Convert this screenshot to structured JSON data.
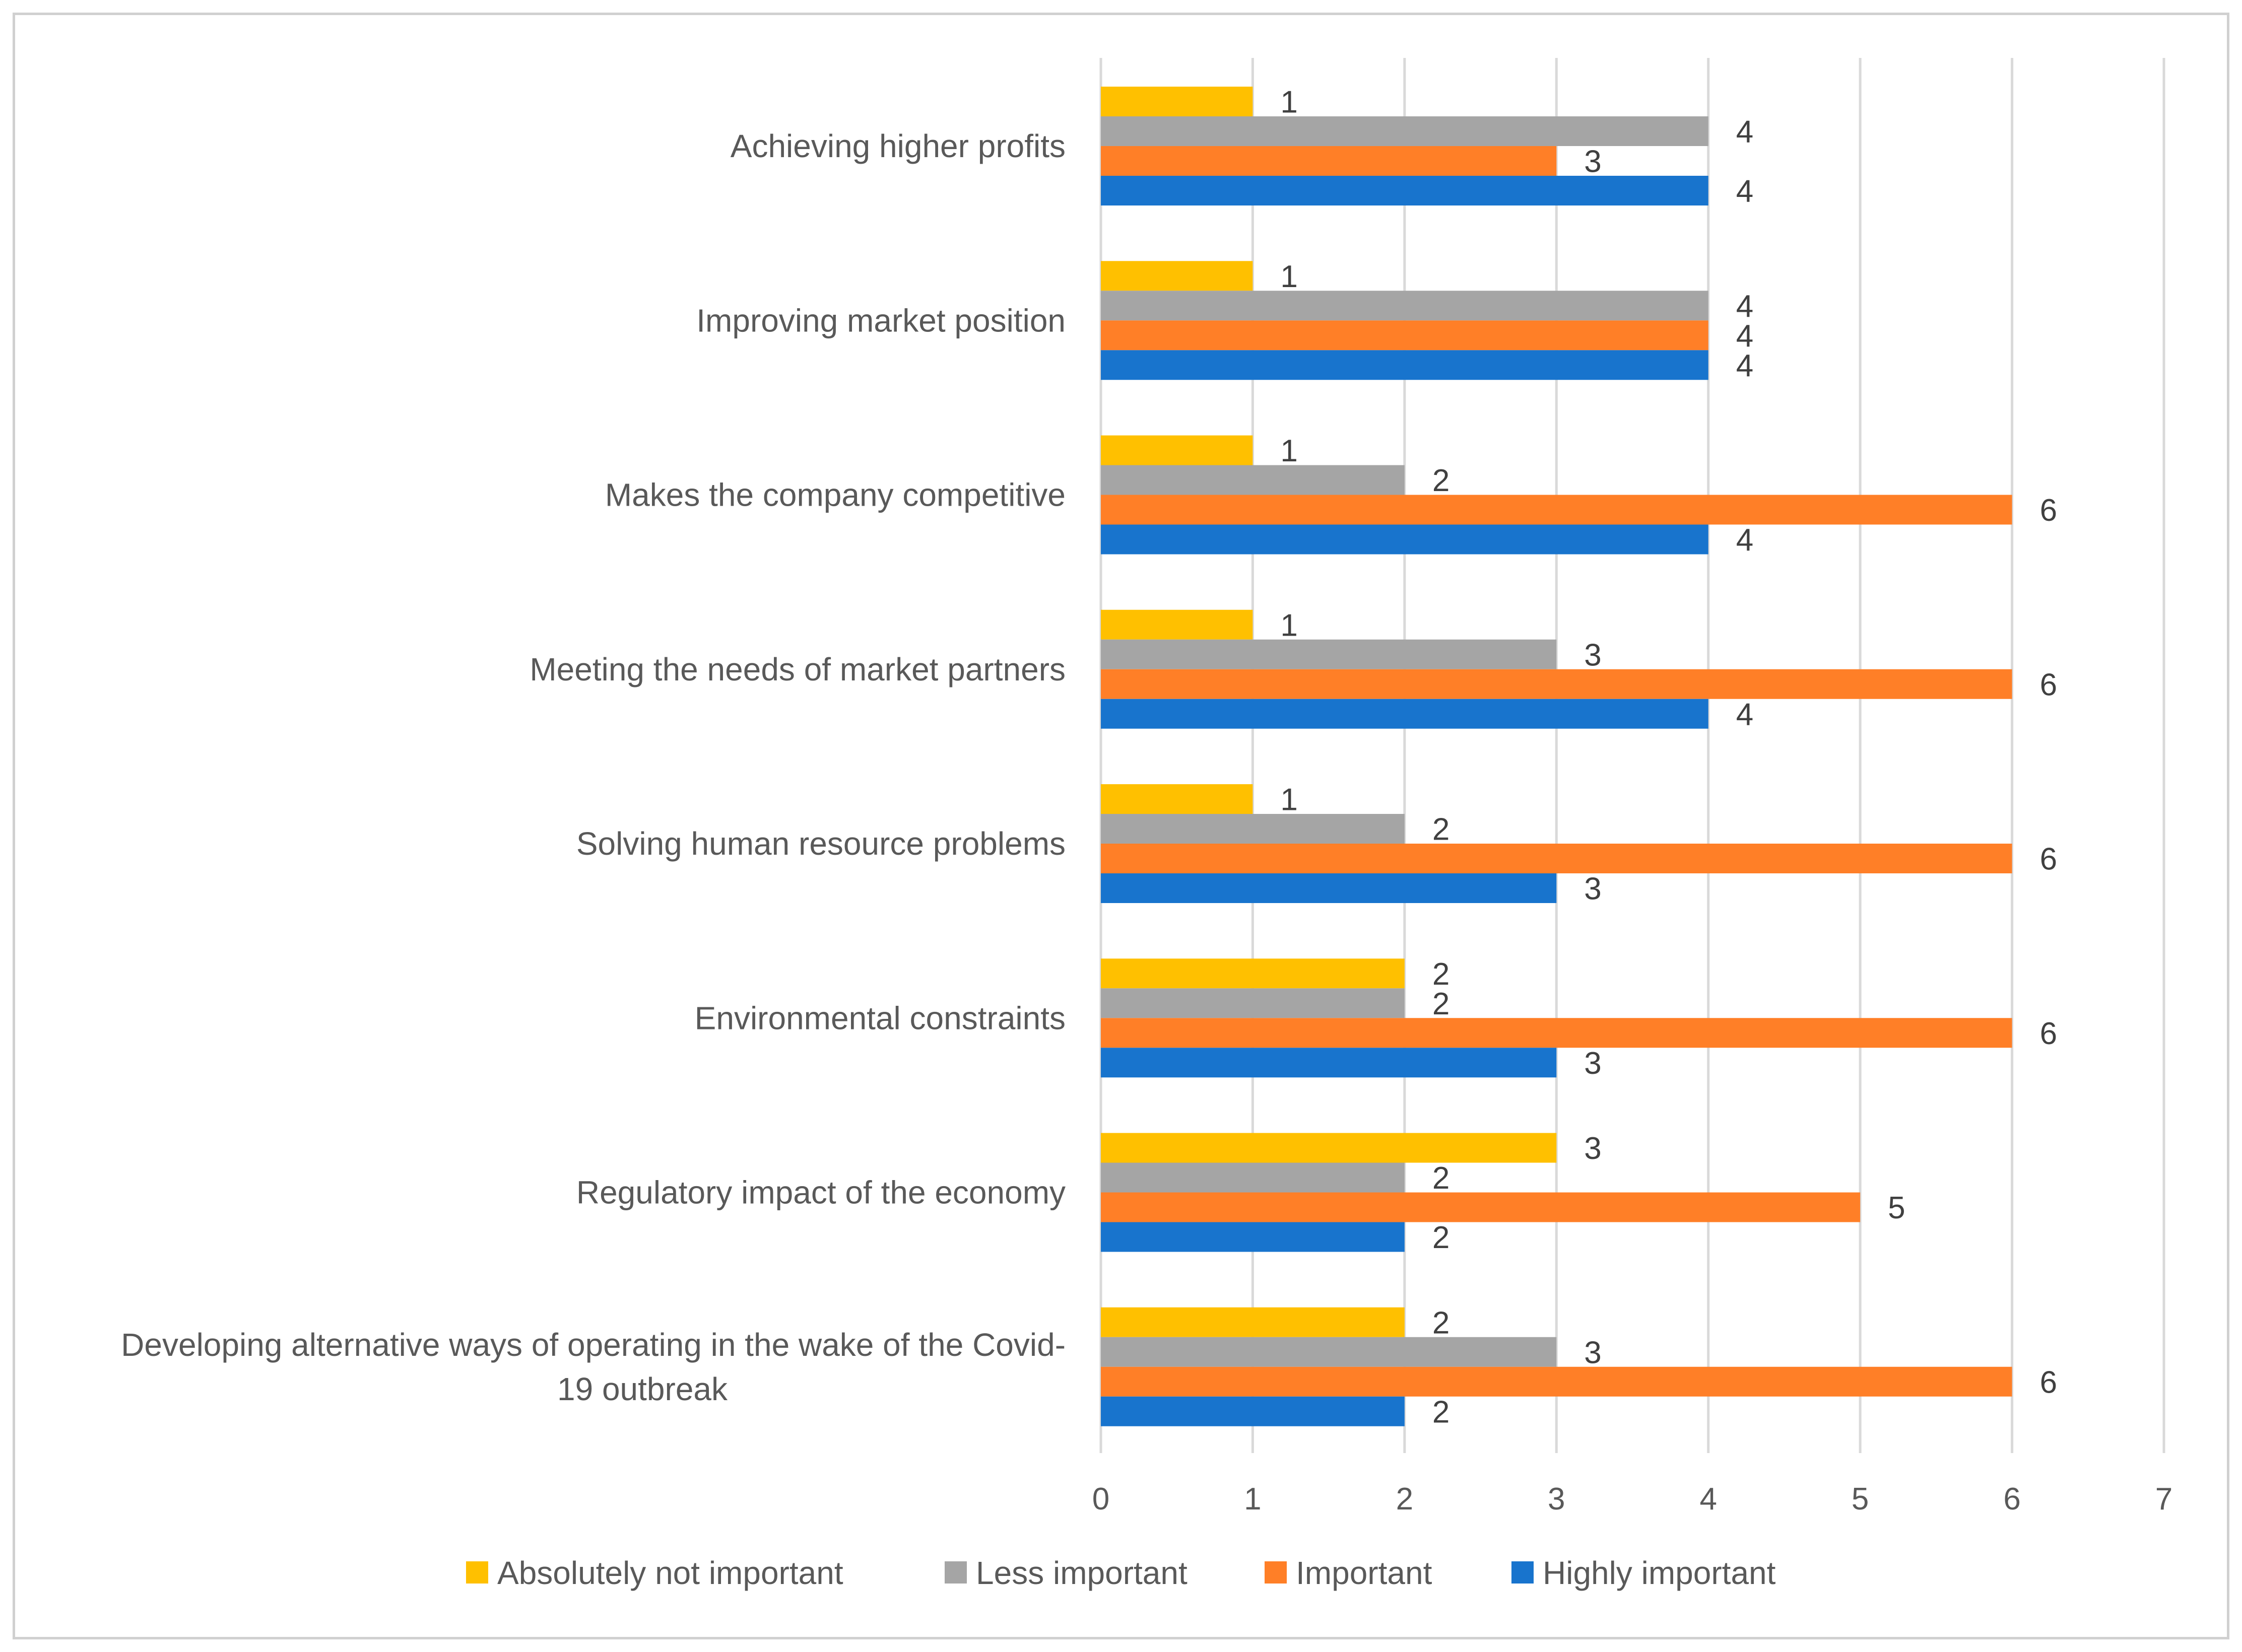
{
  "chart_data": {
    "type": "bar",
    "orientation": "horizontal",
    "title": "",
    "xlabel": "",
    "ylabel": "",
    "xlim": [
      0,
      7
    ],
    "x_ticks": [
      "0",
      "1",
      "2",
      "3",
      "4",
      "5",
      "6",
      "7"
    ],
    "grid": "vertical",
    "legend_position": "bottom",
    "categories": [
      "Achieving higher profits",
      "Improving market position",
      "Makes the company competitive",
      "Meeting the needs of market partners",
      "Solving human resource problems",
      "Environmental constraints",
      "Regulatory impact of the economy",
      "Developing alternative ways of operating in the wake of the Covid-19 outbreak"
    ],
    "category_lines": [
      [
        "Achieving higher profits"
      ],
      [
        "Improving market position"
      ],
      [
        "Makes the company competitive"
      ],
      [
        "Meeting the needs of market partners"
      ],
      [
        "Solving human resource problems"
      ],
      [
        "Environmental constraints"
      ],
      [
        "Regulatory impact of the economy"
      ],
      [
        "Developing alternative ways of operating in the wake of the Covid-",
        "19 outbreak"
      ]
    ],
    "series": [
      {
        "name": "Absolutely not important",
        "color": "#FFC000",
        "values": [
          1,
          1,
          1,
          1,
          1,
          2,
          3,
          2
        ]
      },
      {
        "name": "Less important",
        "color": "#A5A5A5",
        "values": [
          4,
          4,
          2,
          3,
          2,
          2,
          2,
          3
        ]
      },
      {
        "name": "Important",
        "color": "#FF7F27",
        "values": [
          3,
          4,
          6,
          6,
          6,
          6,
          5,
          6
        ]
      },
      {
        "name": "Highly important",
        "color": "#1874CD",
        "values": [
          4,
          4,
          4,
          4,
          3,
          3,
          2,
          2
        ]
      }
    ]
  }
}
